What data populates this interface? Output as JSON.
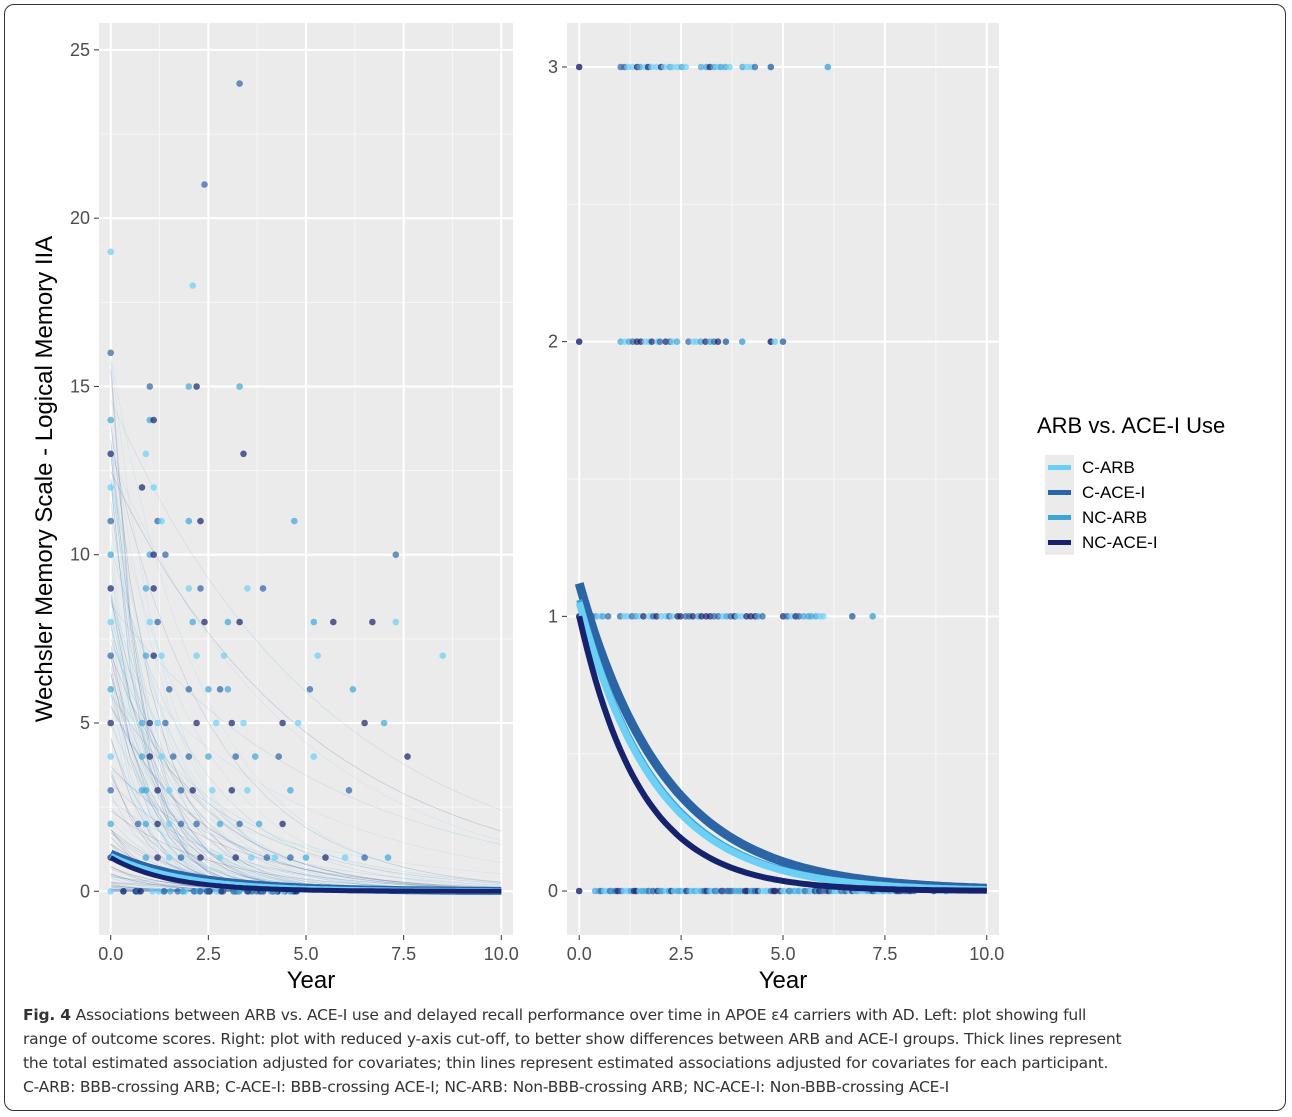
{
  "chart_data": [
    {
      "type": "scatter",
      "panel": "left",
      "xlabel": "Year",
      "ylabel": "Wechsler Memory Scale - Logical Memory IIA",
      "xlim": [
        -0.3,
        10.3
      ],
      "ylim": [
        -1.3,
        25.8
      ],
      "xticks": [
        0,
        2.5,
        5,
        7.5,
        10
      ],
      "xtick_labels": [
        "0.0",
        "2.5",
        "5.0",
        "7.5",
        "10.0"
      ],
      "yticks": [
        0,
        5,
        10,
        15,
        20,
        25
      ],
      "ytick_labels": [
        "0",
        "5",
        "10",
        "15",
        "20",
        "25"
      ],
      "grid": true,
      "points": [
        [
          0,
          19
        ],
        [
          0,
          16
        ],
        [
          0,
          14
        ],
        [
          0,
          13
        ],
        [
          0,
          12
        ],
        [
          0,
          11
        ],
        [
          0,
          10
        ],
        [
          0,
          9
        ],
        [
          0,
          8
        ],
        [
          0,
          7
        ],
        [
          0,
          6
        ],
        [
          0,
          5
        ],
        [
          0,
          4
        ],
        [
          0,
          3
        ],
        [
          0,
          2
        ],
        [
          0,
          1
        ],
        [
          0,
          0
        ],
        [
          0.7,
          2
        ],
        [
          0.8,
          3
        ],
        [
          0.8,
          12
        ],
        [
          0.9,
          13
        ],
        [
          1.0,
          15
        ],
        [
          1.0,
          14
        ],
        [
          1.1,
          14
        ],
        [
          1.1,
          12
        ],
        [
          1.2,
          11
        ],
        [
          1.0,
          10
        ],
        [
          1.1,
          10
        ],
        [
          1.3,
          11
        ],
        [
          1.4,
          10
        ],
        [
          0.9,
          9
        ],
        [
          1.1,
          9
        ],
        [
          1.0,
          8
        ],
        [
          1.2,
          8
        ],
        [
          0.9,
          7
        ],
        [
          1.1,
          7
        ],
        [
          1.3,
          7
        ],
        [
          1.5,
          6
        ],
        [
          0.8,
          5
        ],
        [
          1.0,
          5
        ],
        [
          1.2,
          5
        ],
        [
          1.4,
          5
        ],
        [
          0.8,
          4
        ],
        [
          1.0,
          4
        ],
        [
          1.3,
          4
        ],
        [
          1.6,
          4
        ],
        [
          0.9,
          3
        ],
        [
          1.2,
          3
        ],
        [
          1.5,
          3
        ],
        [
          1.8,
          3
        ],
        [
          0.9,
          2
        ],
        [
          1.2,
          2
        ],
        [
          1.5,
          2
        ],
        [
          1.8,
          2
        ],
        [
          0.9,
          1
        ],
        [
          1.2,
          1
        ],
        [
          1.5,
          1
        ],
        [
          1.8,
          1
        ],
        [
          2.0,
          15
        ],
        [
          2.2,
          15
        ],
        [
          2.1,
          18
        ],
        [
          2.4,
          21
        ],
        [
          2.0,
          11
        ],
        [
          2.3,
          11
        ],
        [
          2.0,
          9
        ],
        [
          2.3,
          9
        ],
        [
          2.1,
          8
        ],
        [
          2.4,
          8
        ],
        [
          2.2,
          7
        ],
        [
          2.0,
          6
        ],
        [
          2.5,
          6
        ],
        [
          2.2,
          5
        ],
        [
          2.7,
          5
        ],
        [
          2.0,
          4
        ],
        [
          2.5,
          4
        ],
        [
          2.1,
          3
        ],
        [
          2.6,
          3
        ],
        [
          2.2,
          2
        ],
        [
          2.8,
          2
        ],
        [
          2.3,
          1
        ],
        [
          2.8,
          1
        ],
        [
          3.3,
          24
        ],
        [
          3.3,
          15
        ],
        [
          3.4,
          13
        ],
        [
          3.5,
          9
        ],
        [
          3.9,
          9
        ],
        [
          3.0,
          8
        ],
        [
          3.3,
          8
        ],
        [
          2.9,
          7
        ],
        [
          2.8,
          6
        ],
        [
          3.0,
          6
        ],
        [
          3.1,
          5
        ],
        [
          3.4,
          5
        ],
        [
          3.2,
          4
        ],
        [
          3.7,
          4
        ],
        [
          3.1,
          3
        ],
        [
          3.5,
          3
        ],
        [
          3.3,
          2
        ],
        [
          3.8,
          2
        ],
        [
          3.2,
          1
        ],
        [
          3.6,
          1
        ],
        [
          4.0,
          1
        ],
        [
          4.7,
          11
        ],
        [
          4.4,
          5
        ],
        [
          4.8,
          5
        ],
        [
          4.3,
          4
        ],
        [
          4.6,
          3
        ],
        [
          4.4,
          2
        ],
        [
          4.2,
          1
        ],
        [
          4.6,
          1
        ],
        [
          5.2,
          8
        ],
        [
          5.7,
          8
        ],
        [
          5.3,
          7
        ],
        [
          5.1,
          6
        ],
        [
          6.2,
          6
        ],
        [
          6.5,
          5
        ],
        [
          5.2,
          4
        ],
        [
          6.1,
          3
        ],
        [
          5.0,
          1
        ],
        [
          5.5,
          1
        ],
        [
          6.0,
          1
        ],
        [
          6.5,
          1
        ],
        [
          7.1,
          1
        ],
        [
          6.7,
          8
        ],
        [
          7.3,
          8
        ],
        [
          7.3,
          10
        ],
        [
          7.0,
          5
        ],
        [
          7.6,
          4
        ],
        [
          8.5,
          7
        ]
      ]
    },
    {
      "type": "scatter",
      "panel": "right",
      "xlabel": "Year",
      "ylabel": "",
      "xlim": [
        -0.3,
        10.3
      ],
      "ylim": [
        -0.16,
        3.16
      ],
      "xticks": [
        0,
        2.5,
        5,
        7.5,
        10
      ],
      "xtick_labels": [
        "0.0",
        "2.5",
        "5.0",
        "7.5",
        "10.0"
      ],
      "yticks": [
        0,
        1,
        2,
        3
      ],
      "ytick_labels": [
        "0",
        "1",
        "2",
        "3"
      ],
      "grid": true,
      "legend_title": "ARB vs. ACE-I  Use",
      "legend_position": "right",
      "series": [
        {
          "name": "C-ARB",
          "color": "#6ccff6",
          "y0": 1.05,
          "rate": 0.53
        },
        {
          "name": "C-ACE-I",
          "color": "#2b65a6",
          "y0": 1.12,
          "rate": 0.47
        },
        {
          "name": "NC-ARB",
          "color": "#3ea5d8",
          "y0": 1.06,
          "rate": 0.52
        },
        {
          "name": "NC-ACE-I",
          "color": "#15226e",
          "y0": 1.0,
          "rate": 0.66
        }
      ],
      "point_rows": [
        {
          "y": 3,
          "x_ranges": [
            [
              1.0,
              2.6
            ],
            [
              3.0,
              3.7
            ],
            [
              4.0,
              4.3
            ]
          ],
          "extra_x": [
            0,
            4.7,
            6.1
          ]
        },
        {
          "y": 2,
          "x_ranges": [
            [
              1.0,
              2.4
            ],
            [
              2.7,
              3.4
            ]
          ],
          "extra_x": [
            0,
            3.6,
            4.0,
            4.7,
            4.8,
            5.0
          ]
        },
        {
          "y": 1,
          "x_ranges": [
            [
              0.3,
              0.7
            ],
            [
              1.0,
              4.5
            ],
            [
              5.0,
              6.0
            ]
          ],
          "extra_x": [
            0,
            6.7,
            7.2
          ]
        },
        {
          "y": 0,
          "x_ranges": [
            [
              0.4,
              8.2
            ]
          ],
          "extra_x": [
            0,
            8.7,
            9.0
          ]
        }
      ]
    }
  ],
  "caption": {
    "label": "Fig. 4",
    "line1": "Associations between ARB vs. ACE-I use and delayed recall performance over time in APOE ε4 carriers with AD. Left: plot showing full",
    "line2": "range of outcome scores. Right: plot with reduced y-axis cut-off, to better show differences between ARB and ACE-I groups. Thick lines represent",
    "line3": "the total estimated association adjusted for covariates; thin lines represent estimated associations adjusted for covariates for each participant.",
    "line4": "C-ARB: BBB-crossing ARB; C-ACE-I: BBB-crossing ACE-I; NC-ARB: Non-BBB-crossing ARB; NC-ACE-I: Non-BBB-crossing ACE-I"
  }
}
